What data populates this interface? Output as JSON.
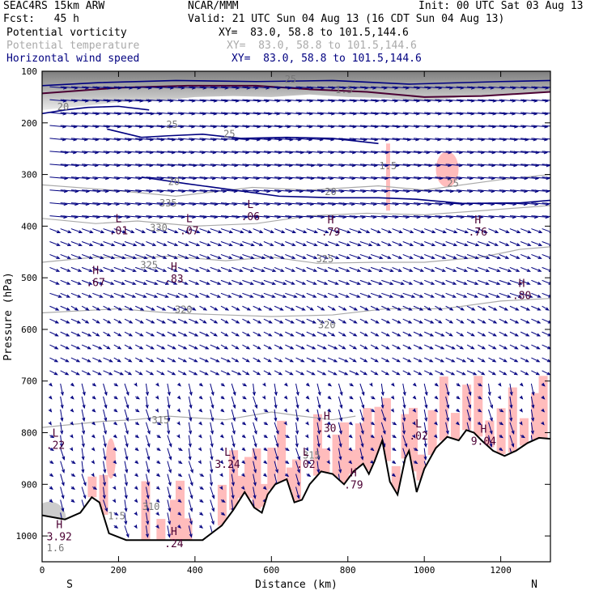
{
  "header": {
    "model": "SEAC4RS 15km ARW",
    "center": "NCAR/MMM",
    "init": "Init: 00 UTC Sat 03 Aug 13",
    "fcst": "Fcst:   45 h",
    "valid": "Valid: 21 UTC Sun 04 Aug 13 (16 CDT Sun 04 Aug 13)",
    "fields": [
      {
        "name": "Potential vorticity",
        "xy": "XY=  83.0, 58.8 to 101.5,144.6",
        "color": "#000000"
      },
      {
        "name": "Potential temperature",
        "xy": "XY=  83.0, 58.8 to 101.5,144.6",
        "color": "#aaaaaa"
      },
      {
        "name": "Horizontal wind speed",
        "xy": "XY=  83.0, 58.8 to 101.5,144.6",
        "color": "#000080"
      }
    ]
  },
  "chart_data": {
    "type": "cross-section",
    "ylabel": "Pressure (hPa)",
    "xlabel": "Distance (km)",
    "y_ticks": [
      100,
      200,
      300,
      400,
      500,
      600,
      700,
      800,
      900,
      1000
    ],
    "x_ticks": [
      0,
      200,
      400,
      600,
      800,
      1000,
      1200
    ],
    "ylim": [
      1050,
      100
    ],
    "xlim": [
      0,
      1330
    ],
    "endpoints": {
      "left": "S",
      "right": "N"
    },
    "colors": {
      "pv_shade": "#ffbcbc",
      "wind": "#000080",
      "theta": "#aaaaaa",
      "pv_contour": "#4b0033",
      "high_shade": "#888888"
    },
    "terrain_profile": [
      [
        0,
        960
      ],
      [
        60,
        968
      ],
      [
        100,
        955
      ],
      [
        130,
        925
      ],
      [
        150,
        935
      ],
      [
        175,
        995
      ],
      [
        220,
        1008
      ],
      [
        300,
        1008
      ],
      [
        420,
        1008
      ],
      [
        470,
        980
      ],
      [
        500,
        950
      ],
      [
        530,
        915
      ],
      [
        555,
        945
      ],
      [
        575,
        955
      ],
      [
        590,
        920
      ],
      [
        610,
        900
      ],
      [
        640,
        890
      ],
      [
        660,
        935
      ],
      [
        680,
        930
      ],
      [
        700,
        900
      ],
      [
        730,
        875
      ],
      [
        760,
        880
      ],
      [
        790,
        900
      ],
      [
        815,
        875
      ],
      [
        840,
        860
      ],
      [
        855,
        880
      ],
      [
        870,
        855
      ],
      [
        890,
        815
      ],
      [
        910,
        895
      ],
      [
        930,
        920
      ],
      [
        950,
        850
      ],
      [
        960,
        835
      ],
      [
        980,
        915
      ],
      [
        1000,
        870
      ],
      [
        1030,
        830
      ],
      [
        1060,
        808
      ],
      [
        1090,
        815
      ],
      [
        1110,
        795
      ],
      [
        1130,
        800
      ],
      [
        1150,
        815
      ],
      [
        1180,
        835
      ],
      [
        1210,
        845
      ],
      [
        1240,
        835
      ],
      [
        1270,
        820
      ],
      [
        1300,
        810
      ],
      [
        1330,
        812
      ]
    ],
    "theta_contours": [
      {
        "label": "315",
        "points": [
          [
            0,
            790
          ],
          [
            160,
            778
          ],
          [
            240,
            775
          ],
          [
            330,
            768
          ],
          [
            480,
            775
          ],
          [
            600,
            760
          ],
          [
            680,
            768
          ],
          [
            760,
            775
          ],
          [
            820,
            768
          ]
        ]
      },
      {
        "label": "320",
        "points": [
          [
            0,
            568
          ],
          [
            200,
            560
          ],
          [
            330,
            568
          ],
          [
            480,
            572
          ],
          [
            600,
            575
          ],
          [
            760,
            572
          ],
          [
            900,
            560
          ],
          [
            1050,
            560
          ],
          [
            1200,
            545
          ],
          [
            1330,
            540
          ]
        ]
      },
      {
        "label": "325",
        "points": [
          [
            0,
            470
          ],
          [
            140,
            460
          ],
          [
            250,
            462
          ],
          [
            330,
            458
          ],
          [
            480,
            467
          ],
          [
            600,
            460
          ],
          [
            720,
            472
          ],
          [
            870,
            470
          ],
          [
            1000,
            470
          ],
          [
            1150,
            460
          ],
          [
            1250,
            445
          ],
          [
            1330,
            440
          ]
        ]
      },
      {
        "label": "330",
        "points": [
          [
            0,
            385
          ],
          [
            140,
            395
          ],
          [
            250,
            390
          ],
          [
            400,
            400
          ],
          [
            560,
            395
          ],
          [
            700,
            380
          ],
          [
            850,
            375
          ],
          [
            1000,
            378
          ],
          [
            1150,
            370
          ],
          [
            1330,
            360
          ]
        ]
      },
      {
        "label": "335",
        "points": [
          [
            0,
            320
          ],
          [
            180,
            330
          ],
          [
            350,
            342
          ],
          [
            550,
            325
          ],
          [
            700,
            330
          ],
          [
            880,
            322
          ],
          [
            1000,
            330
          ],
          [
            1200,
            310
          ],
          [
            1330,
            300
          ]
        ]
      }
    ],
    "wind_speed_contours": [
      {
        "label": "20",
        "points": [
          [
            0,
            182
          ],
          [
            60,
            175
          ],
          [
            120,
            170
          ],
          [
            200,
            168
          ],
          [
            280,
            175
          ]
        ]
      },
      {
        "label": "25",
        "points": [
          [
            170,
            212
          ],
          [
            260,
            228
          ],
          [
            330,
            225
          ],
          [
            420,
            222
          ],
          [
            520,
            230
          ],
          [
            640,
            228
          ],
          [
            760,
            230
          ],
          [
            880,
            240
          ]
        ]
      },
      {
        "label": "20",
        "points": [
          [
            260,
            305
          ],
          [
            380,
            318
          ],
          [
            500,
            330
          ],
          [
            620,
            342
          ],
          [
            760,
            345
          ],
          [
            880,
            345
          ],
          [
            980,
            348
          ],
          [
            1100,
            356
          ],
          [
            1250,
            355
          ],
          [
            1330,
            350
          ]
        ]
      },
      {
        "label": "25",
        "points": [
          [
            0,
            128
          ],
          [
            150,
            122
          ],
          [
            350,
            118
          ],
          [
            560,
            120
          ],
          [
            760,
            118
          ],
          [
            960,
            125
          ],
          [
            1200,
            120
          ],
          [
            1330,
            118
          ]
        ]
      }
    ],
    "pv_contours": [
      {
        "label": "1.5",
        "points": [
          [
            0,
            143
          ],
          [
            200,
            132
          ],
          [
            380,
            128
          ],
          [
            560,
            128
          ],
          [
            700,
            135
          ],
          [
            850,
            140
          ],
          [
            1000,
            150
          ],
          [
            1150,
            148
          ],
          [
            1330,
            140
          ]
        ]
      }
    ],
    "extrema": [
      {
        "type": "L",
        "value": ".01",
        "x": 200,
        "p": 392
      },
      {
        "type": "L",
        "value": ".07",
        "x": 385,
        "p": 392
      },
      {
        "type": "L",
        "value": ".06",
        "x": 545,
        "p": 365
      },
      {
        "type": "H",
        "value": ".79",
        "x": 755,
        "p": 395
      },
      {
        "type": "H",
        "value": ".76",
        "x": 1140,
        "p": 395
      },
      {
        "type": "H",
        "value": ".67",
        "x": 140,
        "p": 493
      },
      {
        "type": "H",
        "value": ".83",
        "x": 345,
        "p": 486
      },
      {
        "type": "H",
        "value": ".80",
        "x": 1255,
        "p": 518
      },
      {
        "type": "L",
        "value": ".22",
        "x": 35,
        "p": 808
      },
      {
        "type": "H",
        "value": ".30",
        "x": 745,
        "p": 775
      },
      {
        "type": "L",
        "value": ".02",
        "x": 985,
        "p": 790
      },
      {
        "type": "H",
        "value": "9.04",
        "x": 1155,
        "p": 800
      },
      {
        "type": "L",
        "value": "3.24",
        "x": 485,
        "p": 845
      },
      {
        "type": "L",
        "value": ".02",
        "x": 690,
        "p": 845
      },
      {
        "type": "H",
        "value": ".79",
        "x": 815,
        "p": 885
      },
      {
        "type": "H",
        "value": "3.92",
        "x": 45,
        "p": 985
      },
      {
        "type": "H",
        "value": ".24",
        "x": 345,
        "p": 998
      }
    ],
    "contour_labels": [
      {
        "text": "20",
        "x": 55,
        "p": 175
      },
      {
        "text": "25",
        "x": 340,
        "p": 210
      },
      {
        "text": "25",
        "x": 490,
        "p": 228
      },
      {
        "text": "20",
        "x": 345,
        "p": 320
      },
      {
        "text": "20",
        "x": 755,
        "p": 340
      },
      {
        "text": "25",
        "x": 1075,
        "p": 323
      },
      {
        "text": "25",
        "x": 650,
        "p": 122
      },
      {
        "text": "1.5",
        "x": 790,
        "p": 142
      },
      {
        "text": "330",
        "x": 305,
        "p": 410
      },
      {
        "text": "335",
        "x": 330,
        "p": 362
      },
      {
        "text": "325",
        "x": 280,
        "p": 482
      },
      {
        "text": "325",
        "x": 740,
        "p": 470
      },
      {
        "text": "320",
        "x": 370,
        "p": 568
      },
      {
        "text": "320",
        "x": 745,
        "p": 598
      },
      {
        "text": "315",
        "x": 310,
        "p": 782
      },
      {
        "text": "315",
        "x": 705,
        "p": 850
      },
      {
        "text": "310",
        "x": 285,
        "p": 950
      },
      {
        "text": "1.5",
        "x": 195,
        "p": 968
      },
      {
        "text": "1.6",
        "x": 35,
        "p": 1030
      },
      {
        "text": "1.5",
        "x": 905,
        "p": 290
      }
    ]
  }
}
